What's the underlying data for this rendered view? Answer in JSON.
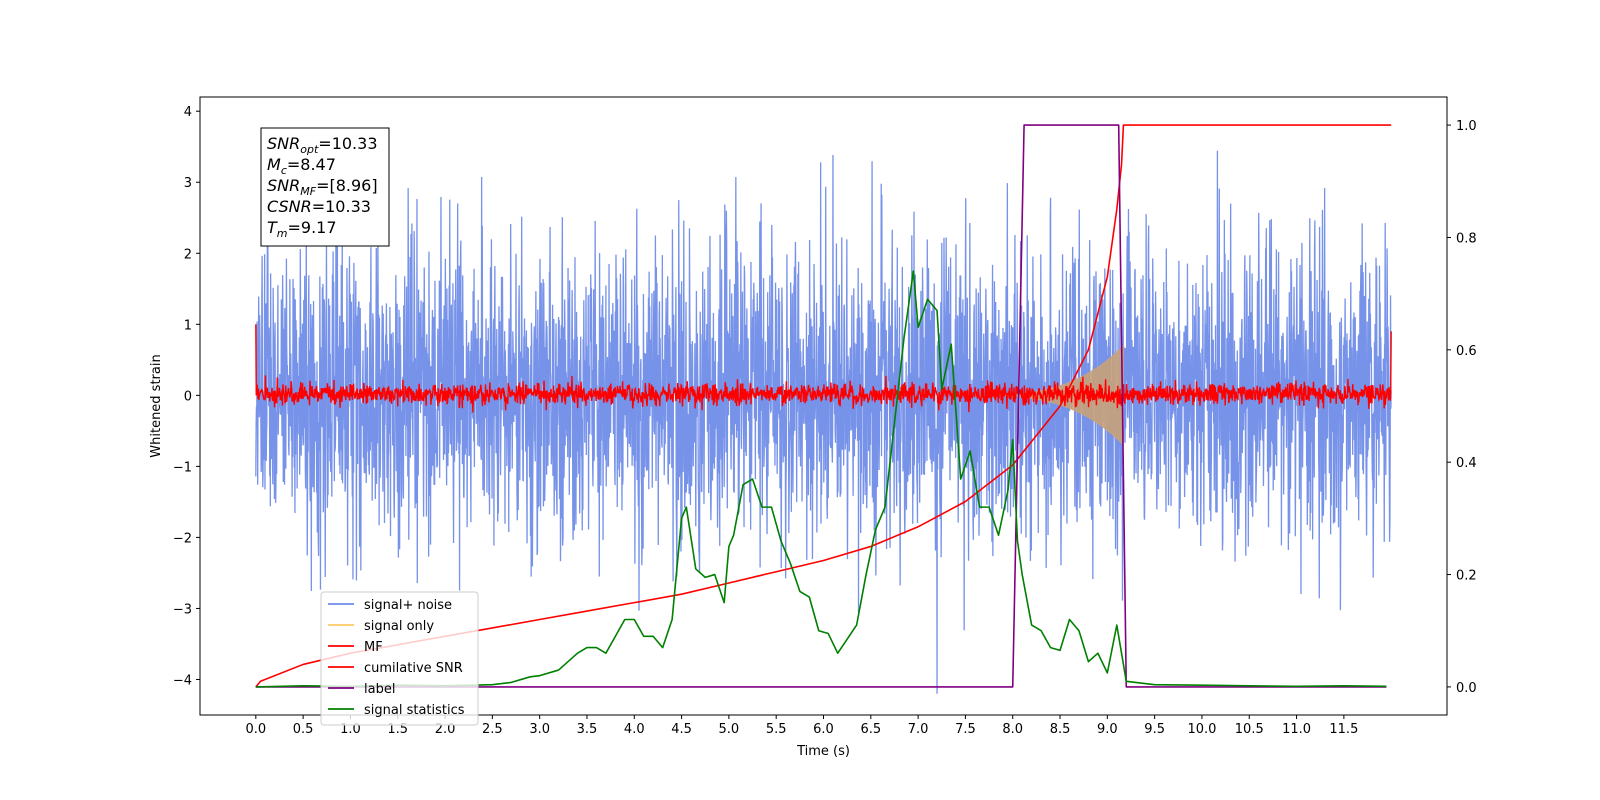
{
  "chart_data": {
    "type": "line",
    "xlabel": "Time (s)",
    "ylabel_left": "Whitened strain",
    "xlim": [
      -0.59,
      12.59
    ],
    "ylim_left": [
      -4.5,
      4.2
    ],
    "ylim_right": [
      -0.05,
      1.05
    ],
    "x_ticks": [
      0.0,
      0.5,
      1.0,
      1.5,
      2.0,
      2.5,
      3.0,
      3.5,
      4.0,
      4.5,
      5.0,
      5.5,
      6.0,
      6.5,
      7.0,
      7.5,
      8.0,
      8.5,
      9.0,
      9.5,
      10.0,
      10.5,
      11.0,
      11.5
    ],
    "x_tick_labels": [
      "0.0",
      "0.5",
      "1.0",
      "1.5",
      "2.0",
      "2.5",
      "3.0",
      "3.5",
      "4.0",
      "4.5",
      "5.0",
      "5.5",
      "6.0",
      "6.5",
      "7.0",
      "7.5",
      "8.0",
      "8.5",
      "9.0",
      "9.5",
      "10.0",
      "10.5",
      "11.0",
      "11.5"
    ],
    "y_left_ticks": [
      -4,
      -3,
      -2,
      -1,
      0,
      1,
      2,
      3,
      4
    ],
    "y_left_tick_labels": [
      "−4",
      "−3",
      "−2",
      "−1",
      "0",
      "1",
      "2",
      "3",
      "4"
    ],
    "y_right_ticks": [
      0.0,
      0.2,
      0.4,
      0.6,
      0.8,
      1.0
    ],
    "y_right_tick_labels": [
      "0.0",
      "0.2",
      "0.4",
      "0.6",
      "0.8",
      "1.0"
    ],
    "legend_position": "lower-left",
    "series": [
      {
        "name": "signal+ noise",
        "axis": "left",
        "color": "#6f8ce8",
        "description_type": "noise",
        "x_range": [
          0.0,
          12.0
        ],
        "typical_amplitude": 1.7,
        "peak_max": 3.8,
        "peak_min": -4.2
      },
      {
        "name": "signal only",
        "axis": "left",
        "color": "#c9a27a",
        "description_type": "chirp",
        "x_range": [
          7.5,
          9.17
        ],
        "amplitude_end": 0.7
      },
      {
        "name": "MF",
        "axis": "left",
        "color": "#ff0000",
        "description_type": "noise",
        "x_range": [
          0.0,
          12.0
        ],
        "typical_amplitude": 0.25,
        "edge_values": [
          1.0,
          0.9
        ]
      },
      {
        "name": "cumilative SNR",
        "axis": "right",
        "color": "#ff0000",
        "x": [
          0.0,
          0.05,
          0.5,
          1.0,
          1.5,
          2.0,
          2.5,
          3.0,
          3.5,
          4.0,
          4.5,
          5.0,
          5.5,
          6.0,
          6.5,
          7.0,
          7.5,
          8.0,
          8.5,
          8.8,
          9.0,
          9.1,
          9.15,
          9.17,
          12.0
        ],
        "y": [
          0.0,
          0.01,
          0.04,
          0.06,
          0.075,
          0.09,
          0.105,
          0.12,
          0.135,
          0.15,
          0.165,
          0.185,
          0.205,
          0.225,
          0.25,
          0.285,
          0.33,
          0.395,
          0.5,
          0.6,
          0.73,
          0.85,
          0.93,
          1.0,
          1.0
        ]
      },
      {
        "name": "label",
        "axis": "right",
        "color": "#800080",
        "x": [
          0.0,
          8.0,
          8.12,
          9.12,
          9.2,
          11.95
        ],
        "y": [
          0.0,
          0.0,
          1.0,
          1.0,
          0.0,
          0.0
        ]
      },
      {
        "name": "signal statistics",
        "axis": "right",
        "color": "#008000",
        "x": [
          0.0,
          0.5,
          1.0,
          1.5,
          2.0,
          2.5,
          2.7,
          2.9,
          3.0,
          3.2,
          3.4,
          3.5,
          3.6,
          3.7,
          3.8,
          3.9,
          4.0,
          4.1,
          4.2,
          4.3,
          4.4,
          4.5,
          4.55,
          4.65,
          4.75,
          4.85,
          4.95,
          5.0,
          5.05,
          5.15,
          5.25,
          5.35,
          5.45,
          5.55,
          5.65,
          5.75,
          5.85,
          5.95,
          6.05,
          6.15,
          6.25,
          6.35,
          6.45,
          6.55,
          6.65,
          6.75,
          6.85,
          6.95,
          7.0,
          7.1,
          7.2,
          7.25,
          7.35,
          7.45,
          7.55,
          7.65,
          7.75,
          7.85,
          7.95,
          8.0,
          8.05,
          8.1,
          8.2,
          8.3,
          8.4,
          8.5,
          8.6,
          8.7,
          8.8,
          8.9,
          9.0,
          9.1,
          9.2,
          9.5,
          10.0,
          10.5,
          11.0,
          11.5,
          11.95
        ],
        "y": [
          0.0,
          0.002,
          0.001,
          0.003,
          0.002,
          0.004,
          0.008,
          0.018,
          0.02,
          0.03,
          0.06,
          0.07,
          0.07,
          0.06,
          0.09,
          0.12,
          0.12,
          0.09,
          0.09,
          0.07,
          0.12,
          0.3,
          0.32,
          0.21,
          0.195,
          0.2,
          0.15,
          0.25,
          0.27,
          0.36,
          0.37,
          0.32,
          0.32,
          0.26,
          0.22,
          0.17,
          0.16,
          0.1,
          0.095,
          0.06,
          0.085,
          0.11,
          0.2,
          0.28,
          0.32,
          0.47,
          0.62,
          0.74,
          0.64,
          0.69,
          0.67,
          0.53,
          0.61,
          0.37,
          0.42,
          0.32,
          0.32,
          0.27,
          0.35,
          0.44,
          0.26,
          0.2,
          0.11,
          0.1,
          0.07,
          0.065,
          0.12,
          0.1,
          0.045,
          0.06,
          0.025,
          0.11,
          0.01,
          0.004,
          0.003,
          0.002,
          0.001,
          0.002,
          0.001
        ]
      }
    ],
    "info_box": {
      "lines": [
        {
          "main": "SNR",
          "sub": "opt",
          "value": "=10.33"
        },
        {
          "main": "M",
          "sub": "c",
          "value": "=8.47"
        },
        {
          "main": "SNR",
          "sub": "MF",
          "value": "=[8.96]"
        },
        {
          "main": "CSNR",
          "sub": "",
          "value": "=10.33"
        },
        {
          "main": "T",
          "sub": "m",
          "value": "=9.17"
        }
      ]
    }
  }
}
